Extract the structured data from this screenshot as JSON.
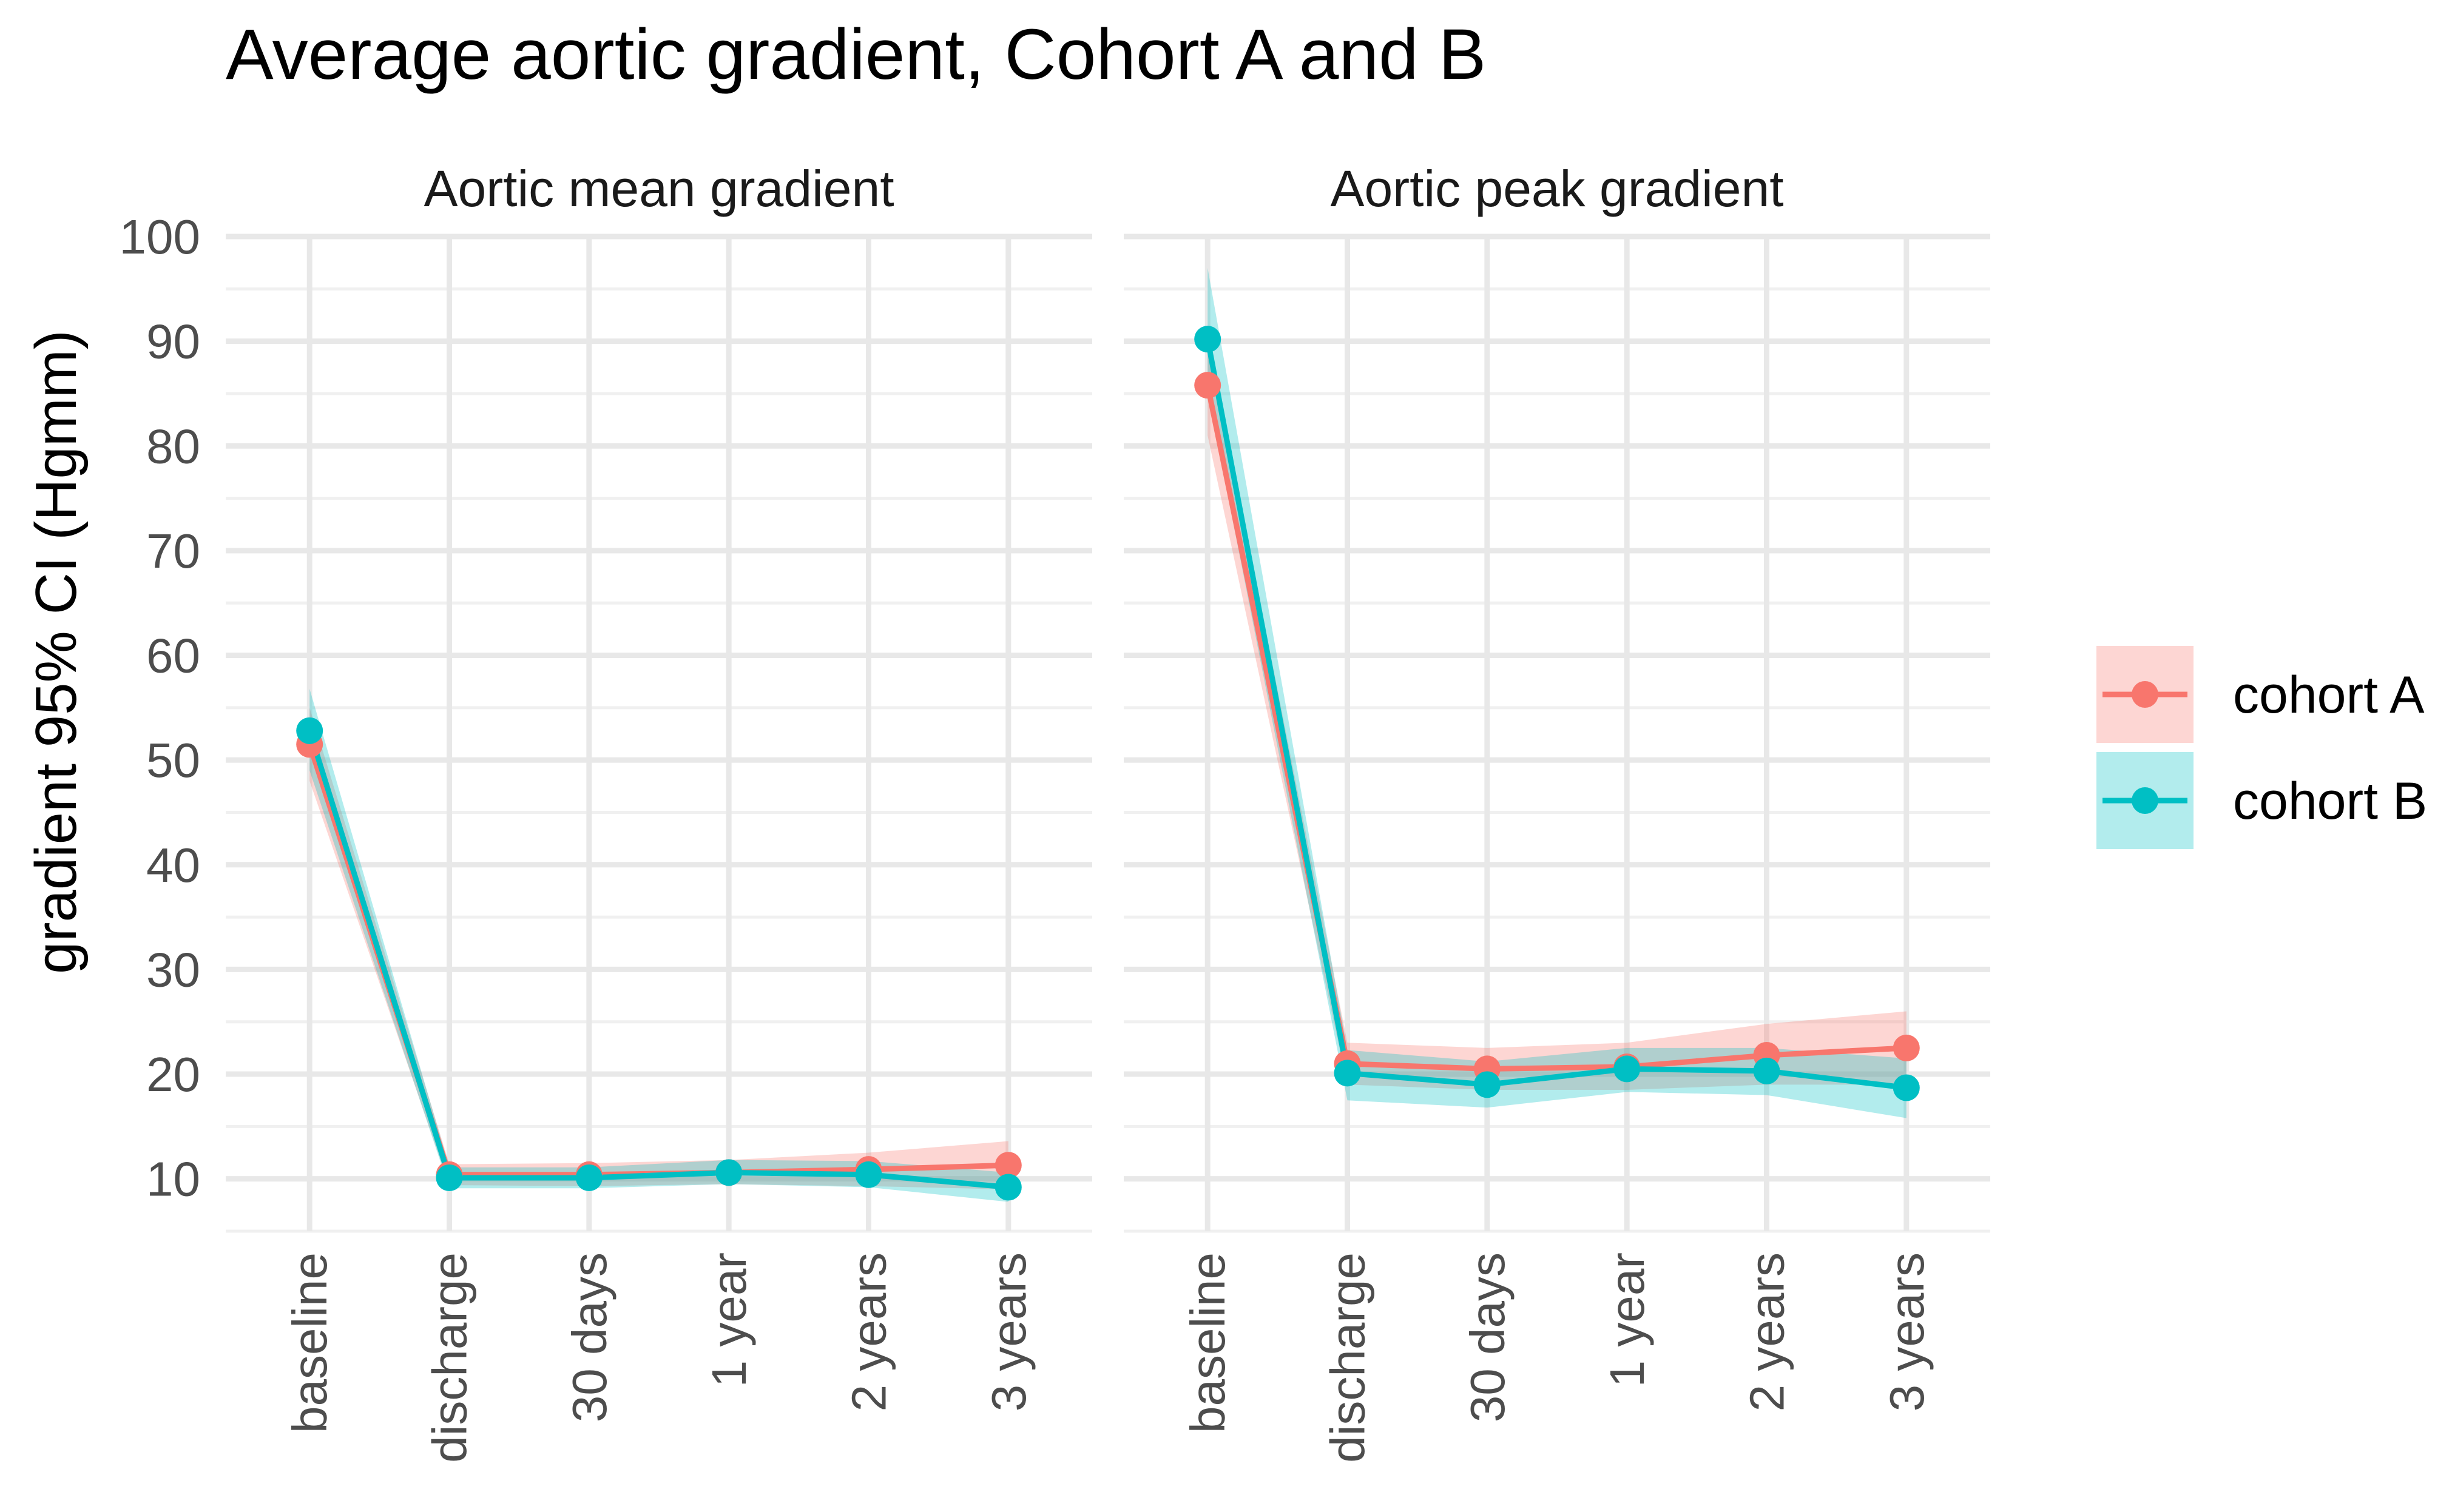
{
  "chart_data": {
    "type": "line",
    "title": "Average aortic gradient, Cohort A and B",
    "ylabel": "gradient 95% CI (Hgmm)",
    "xlabel": "",
    "ylim": [
      5,
      100
    ],
    "yticks": [
      10,
      20,
      30,
      40,
      50,
      60,
      70,
      80,
      90,
      100
    ],
    "grid": true,
    "legend_position": "right",
    "categories": [
      "baseline",
      "discharge",
      "30 days",
      "1 year",
      "2 years",
      "3 years"
    ],
    "panels": [
      {
        "title": "Aortic mean gradient",
        "series": [
          {
            "name": "cohort A",
            "color": "#F8766D",
            "values": [
              51.5,
              10.4,
              10.4,
              10.6,
              10.9,
              11.3
            ],
            "ci_lower": [
              48.0,
              9.4,
              9.3,
              9.5,
              9.3,
              9.0
            ],
            "ci_upper": [
              55.0,
              11.4,
              11.5,
              11.8,
              12.5,
              13.6
            ]
          },
          {
            "name": "cohort B",
            "color": "#00BFC4",
            "values": [
              52.8,
              10.1,
              10.1,
              10.6,
              10.4,
              9.2
            ],
            "ci_lower": [
              49.0,
              9.1,
              9.1,
              9.5,
              9.2,
              7.8
            ],
            "ci_upper": [
              56.8,
              11.1,
              11.1,
              11.8,
              11.7,
              10.6
            ]
          }
        ]
      },
      {
        "title": "Aortic peak gradient",
        "series": [
          {
            "name": "cohort A",
            "color": "#F8766D",
            "values": [
              85.8,
              21.0,
              20.5,
              20.7,
              21.8,
              22.5
            ],
            "ci_lower": [
              81.0,
              19.0,
              18.5,
              18.5,
              19.0,
              19.0
            ],
            "ci_upper": [
              90.5,
              23.0,
              22.5,
              23.0,
              24.8,
              26.0
            ]
          },
          {
            "name": "cohort B",
            "color": "#00BFC4",
            "values": [
              90.2,
              20.1,
              19.0,
              20.5,
              20.3,
              18.7
            ],
            "ci_lower": [
              85.0,
              17.5,
              16.8,
              18.3,
              18.0,
              15.8
            ],
            "ci_upper": [
              97.0,
              22.3,
              21.2,
              22.5,
              22.5,
              21.5
            ]
          }
        ]
      }
    ],
    "legend": [
      {
        "label": "cohort A",
        "color": "#F8766D"
      },
      {
        "label": "cohort B",
        "color": "#00BFC4"
      }
    ]
  }
}
